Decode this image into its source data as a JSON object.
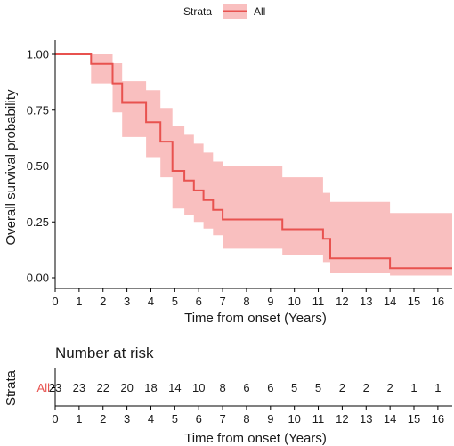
{
  "legend": {
    "title": "Strata",
    "label": "All"
  },
  "colors": {
    "curve": "#e8524f",
    "band": "#f9bfbf",
    "text": "#1a1a1a",
    "axis": "#000000"
  },
  "chart_data": {
    "type": "line",
    "subtype": "kaplan-meier-step",
    "xlabel": "Time from onset (Years)",
    "ylabel": "Overall survival probability",
    "xlim": [
      0,
      16.6
    ],
    "ylim": [
      0,
      1
    ],
    "x_ticks": [
      0,
      1,
      2,
      3,
      4,
      5,
      6,
      7,
      8,
      9,
      10,
      11,
      12,
      13,
      14,
      15,
      16
    ],
    "y_ticks": [
      0.0,
      0.25,
      0.5,
      0.75,
      1.0
    ],
    "y_tick_labels": [
      "0.00",
      "0.25",
      "0.50",
      "0.75",
      "1.00"
    ],
    "grid": false,
    "legend_position": "top",
    "series": [
      {
        "name": "All",
        "x": [
          0,
          1.5,
          2.4,
          2.8,
          3.8,
          4.4,
          4.9,
          5.4,
          5.8,
          6.2,
          6.6,
          7.0,
          9.5,
          11.2,
          11.5,
          14.0,
          16.6
        ],
        "y": [
          1.0,
          0.957,
          0.87,
          0.783,
          0.696,
          0.609,
          0.478,
          0.435,
          0.391,
          0.348,
          0.304,
          0.261,
          0.217,
          0.174,
          0.087,
          0.043,
          0.043
        ],
        "ci_lower": [
          1.0,
          0.87,
          0.74,
          0.63,
          0.54,
          0.45,
          0.31,
          0.28,
          0.25,
          0.22,
          0.19,
          0.13,
          0.1,
          0.07,
          0.02,
          0.01,
          0.01
        ],
        "ci_upper": [
          1.0,
          1.0,
          0.96,
          0.88,
          0.84,
          0.76,
          0.68,
          0.64,
          0.6,
          0.56,
          0.52,
          0.5,
          0.45,
          0.38,
          0.34,
          0.29,
          0.29
        ]
      }
    ]
  },
  "risk_table": {
    "title": "Number at risk",
    "ylabel": "Strata",
    "xlabel": "Time from onset (Years)",
    "strata": "All",
    "times": [
      0,
      1,
      2,
      3,
      4,
      5,
      6,
      7,
      8,
      9,
      10,
      11,
      12,
      13,
      14,
      15,
      16
    ],
    "counts": [
      23,
      23,
      22,
      20,
      18,
      14,
      10,
      8,
      6,
      6,
      5,
      5,
      2,
      2,
      2,
      1,
      1
    ]
  }
}
